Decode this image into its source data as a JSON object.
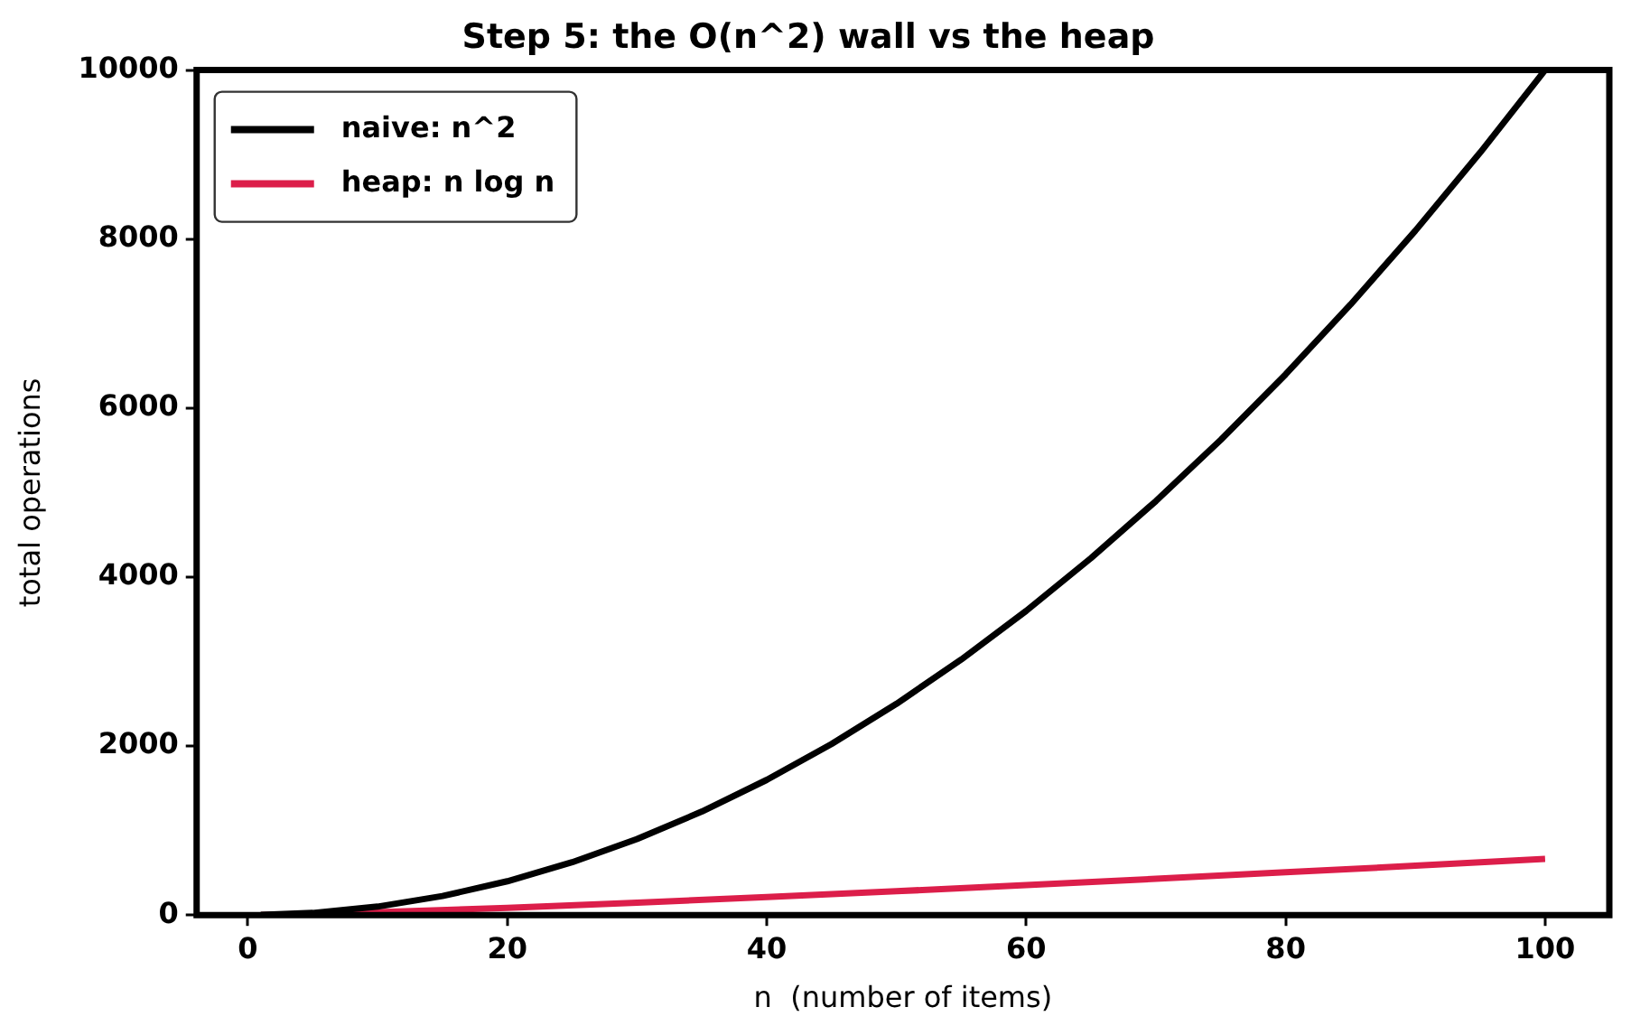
{
  "chart_data": {
    "type": "line",
    "title": "Step 5: the O(n^2) wall vs the heap",
    "xlabel": "n  (number of items)",
    "ylabel": "total operations",
    "xlim": [
      -3.95,
      104.95
    ],
    "ylim": [
      0,
      10000
    ],
    "xticks": [
      0,
      20,
      40,
      60,
      80,
      100
    ],
    "yticks": [
      0,
      2000,
      4000,
      6000,
      8000,
      10000
    ],
    "grid": false,
    "legend": "top left",
    "marker": "none",
    "line_style": "solid",
    "series": [
      {
        "name": "naive: n^2",
        "color": "#000000",
        "x": [
          1,
          5,
          10,
          15,
          20,
          25,
          30,
          35,
          40,
          45,
          50,
          55,
          60,
          65,
          70,
          75,
          80,
          85,
          90,
          95,
          100
        ],
        "values": [
          1,
          25,
          100,
          225,
          400,
          625,
          900,
          1225,
          1600,
          2025,
          2500,
          3025,
          3600,
          4225,
          4900,
          5625,
          6400,
          7225,
          8100,
          9025,
          10000
        ]
      },
      {
        "name": "heap: n log n",
        "color": "#dc1e4a",
        "x": [
          1,
          10,
          20,
          30,
          40,
          50,
          60,
          70,
          80,
          90,
          100
        ],
        "values": [
          0,
          33,
          86,
          147,
          213,
          282,
          354,
          429,
          506,
          584,
          664
        ]
      }
    ]
  }
}
